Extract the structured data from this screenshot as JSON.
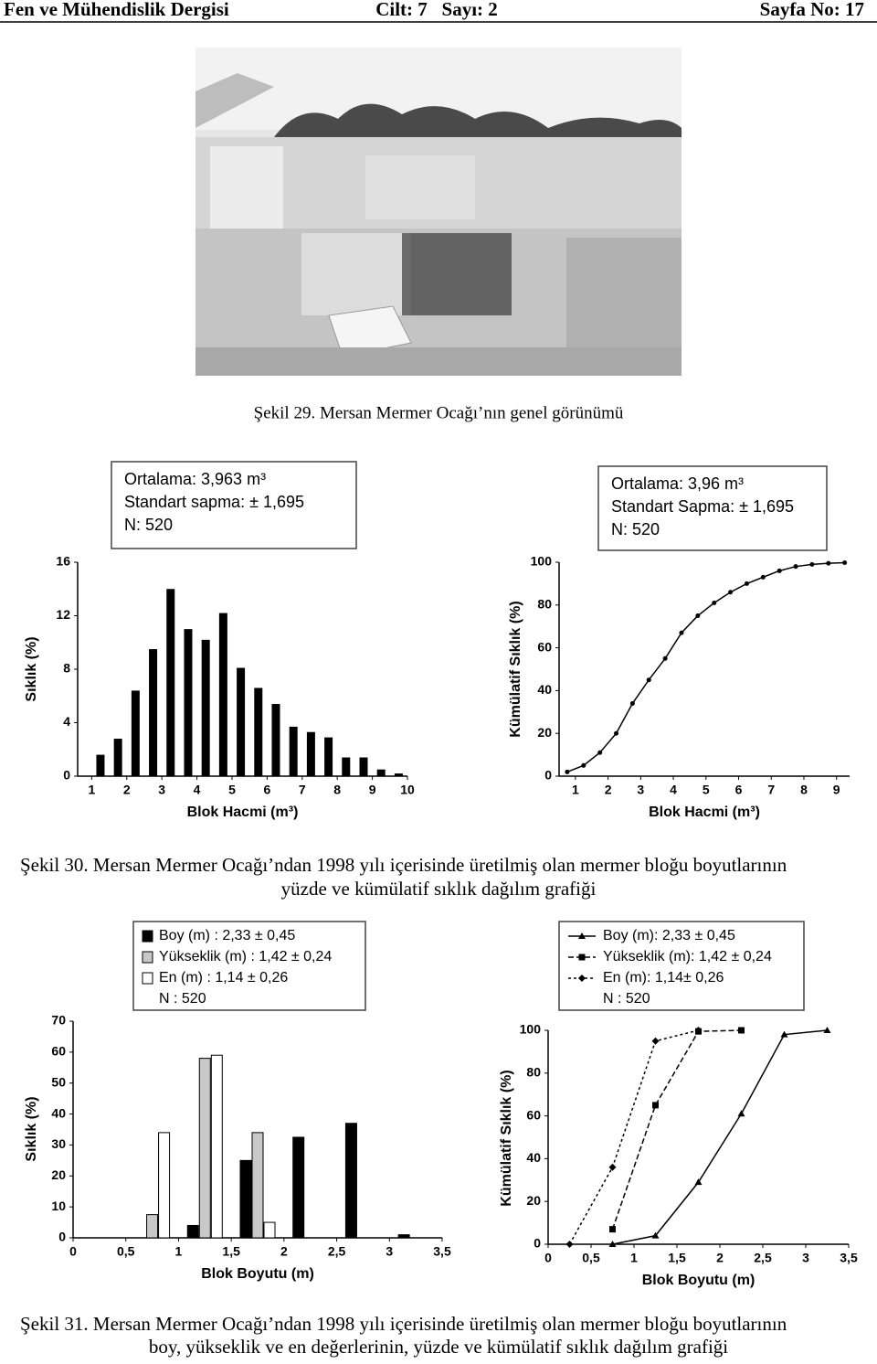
{
  "header": {
    "journal": "Fen ve Mühendislik Dergisi",
    "issue": "Cilt: 7   Sayı: 2",
    "page": "Sayfa No: 17"
  },
  "captions": {
    "fig29": "Şekil 29. Mersan Mermer Ocağı’nın genel görünümü",
    "fig30": [
      "Şekil 30. Mersan Mermer Ocağı’ndan 1998 yılı içerisinde üretilmiş olan mermer bloğu boyutlarının",
      "yüzde ve kümülatif sıklık dağılım grafiği"
    ],
    "fig31": [
      "Şekil 31. Mersan Mermer Ocağı’ndan 1998 yılı içerisinde üretilmiş olan mermer bloğu boyutlarının",
      "boy, yükseklik ve en değerlerinin, yüzde ve kümülatif sıklık dağılım grafiği"
    ]
  },
  "chart_data": [
    {
      "type": "bar",
      "y_label": "Sıklık (%)",
      "x_label": "Blok Hacmi (m³)",
      "color": "#000000",
      "stats": [
        "Ortalama: 3,963 m³",
        "Standart sapma: ± 1,695",
        "N: 520"
      ],
      "x": [
        1.25,
        1.75,
        2.25,
        2.75,
        3.25,
        3.75,
        4.25,
        4.75,
        5.25,
        5.75,
        6.25,
        6.75,
        7.25,
        7.75,
        8.25,
        8.75,
        9.25,
        9.75
      ],
      "values": [
        1.6,
        2.8,
        6.4,
        9.5,
        14,
        11,
        10.2,
        12.2,
        8.1,
        6.6,
        5.4,
        3.7,
        3.3,
        2.9,
        1.4,
        1.4,
        0.5,
        0.2
      ],
      "xlim": [
        0.6,
        10
      ],
      "xticks": [
        1,
        2,
        3,
        4,
        5,
        6,
        7,
        8,
        9,
        10
      ],
      "ylim": [
        0,
        16
      ],
      "yticks": [
        0,
        4,
        8,
        12,
        16
      ]
    },
    {
      "type": "line",
      "y_label": "Kümülatif Sıklık (%)",
      "x_label": "Blok Hacmi (m³)",
      "color": "#000000",
      "stats": [
        "Ortalama: 3,96 m³",
        "Standart Sapma: ± 1,695",
        "N: 520"
      ],
      "x": [
        0.75,
        1.25,
        1.75,
        2.25,
        2.75,
        3.25,
        3.75,
        4.25,
        4.75,
        5.25,
        5.75,
        6.25,
        6.75,
        7.25,
        7.75,
        8.25,
        8.75,
        9.25
      ],
      "values": [
        2,
        5,
        11,
        20,
        34,
        45,
        55,
        67,
        75,
        81,
        86,
        90,
        93,
        96,
        98,
        99,
        99.5,
        99.8
      ],
      "xlim": [
        0.5,
        9.4
      ],
      "xticks": [
        1,
        2,
        3,
        4,
        5,
        6,
        7,
        8,
        9
      ],
      "ylim": [
        0,
        100
      ],
      "yticks": [
        0,
        20,
        40,
        60,
        80,
        100
      ]
    },
    {
      "type": "bar",
      "y_label": "Sıklık (%)",
      "x_label": "Blok Boyutu (m)",
      "note": "N : 520",
      "x": [
        0.75,
        1.25,
        1.75,
        2.25,
        2.75,
        3.25
      ],
      "series": [
        {
          "name": "Boy (m) : 2,33 ± 0,45",
          "color": "#000000",
          "values": [
            0,
            4,
            25,
            32.5,
            37,
            1
          ]
        },
        {
          "name": "Yükseklik (m) : 1,42 ± 0,24",
          "color": "#c8c8c8",
          "values": [
            7.5,
            58,
            34,
            0,
            0,
            0
          ]
        },
        {
          "name": "En (m) : 1,14 ± 0,26",
          "color": "#ffffff",
          "values": [
            34,
            59,
            5,
            0,
            0,
            0
          ]
        }
      ],
      "xlim": [
        0,
        3.5
      ],
      "xticks": [
        0,
        {
          "value": 0.5,
          "label": "0,5"
        },
        1,
        {
          "value": 1.5,
          "label": "1,5"
        },
        2,
        {
          "value": 2.5,
          "label": "2,5"
        },
        3,
        {
          "value": 3.5,
          "label": "3,5"
        }
      ],
      "ylim": [
        0,
        70
      ],
      "yticks": [
        0,
        10,
        20,
        30,
        40,
        50,
        60,
        70
      ]
    },
    {
      "type": "line",
      "y_label": "Kümülatif Sıklık (%)",
      "x_label": "Blok Boyutu (m)",
      "note": "N : 520",
      "series": [
        {
          "name": "Boy (m): 2,33 ± 0,45",
          "color": "#000000",
          "marker": "triangle",
          "line_style": "solid",
          "x": [
            0.75,
            1.25,
            1.75,
            2.25,
            2.75,
            3.25
          ],
          "values": [
            0,
            4,
            29,
            61,
            98,
            100
          ]
        },
        {
          "name": "Yükseklik (m): 1,42 ± 0,24",
          "color": "#000000",
          "marker": "square",
          "line_style": "dashed",
          "x": [
            0.75,
            1.25,
            1.75,
            2.25
          ],
          "values": [
            7,
            65,
            99.5,
            100
          ]
        },
        {
          "name": "En (m): 1,14± 0,26",
          "color": "#000000",
          "marker": "diamond",
          "line_style": "dotted",
          "x": [
            0.25,
            0.75,
            1.25,
            1.75
          ],
          "values": [
            0,
            36,
            95,
            100
          ]
        }
      ],
      "xlim": [
        0,
        3.5
      ],
      "xticks": [
        0,
        {
          "value": 0.5,
          "label": "0,5"
        },
        1,
        {
          "value": 1.5,
          "label": "1,5"
        },
        2,
        {
          "value": 2.5,
          "label": "2,5"
        },
        3,
        {
          "value": 3.5,
          "label": "3,5"
        }
      ],
      "ylim": [
        0,
        100
      ],
      "yticks": [
        0,
        20,
        40,
        60,
        80,
        100
      ]
    }
  ]
}
